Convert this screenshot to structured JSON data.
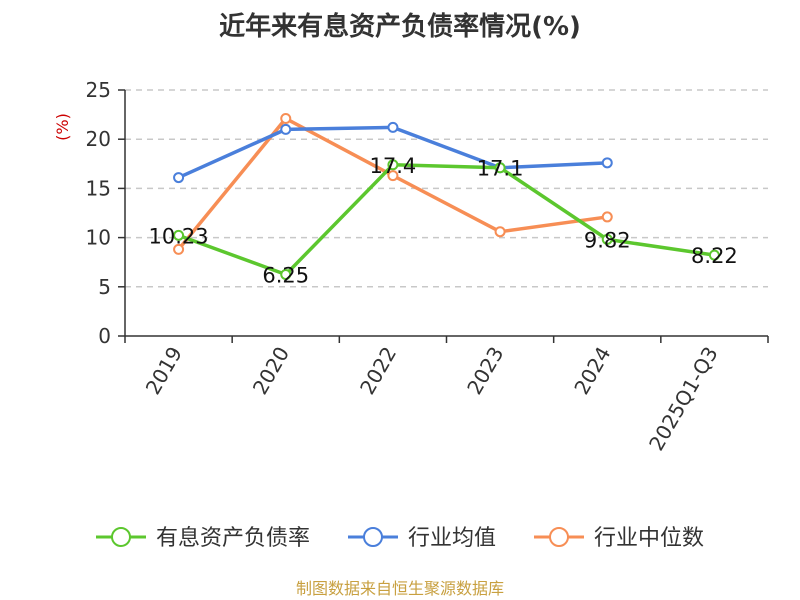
{
  "chart_data": {
    "type": "line",
    "title": "近年来有息资产负债率情况(%)",
    "ylabel": "(%)",
    "xlabel": "",
    "categories": [
      "2019",
      "2020",
      "2022",
      "2023",
      "2024",
      "2025Q1-Q3"
    ],
    "ylim": [
      0,
      25
    ],
    "yticks": [
      0,
      5,
      10,
      15,
      20,
      25
    ],
    "grid": true,
    "legend_position": "bottom",
    "series": [
      {
        "name": "有息资产负债率",
        "color": "#5cc72e",
        "values": [
          10.23,
          6.25,
          17.4,
          17.1,
          9.82,
          8.22
        ],
        "labels": [
          "10.23",
          "6.25",
          "17.4",
          "17.1",
          "9.82",
          "8.22"
        ]
      },
      {
        "name": "行业均值",
        "color": "#4a7fdb",
        "values": [
          16.1,
          21.0,
          21.2,
          17.1,
          17.6,
          null
        ]
      },
      {
        "name": "行业中位数",
        "color": "#f78e55",
        "values": [
          8.8,
          22.1,
          16.3,
          10.6,
          12.1,
          null
        ]
      }
    ],
    "source": "制图数据来自恒生聚源数据库"
  }
}
